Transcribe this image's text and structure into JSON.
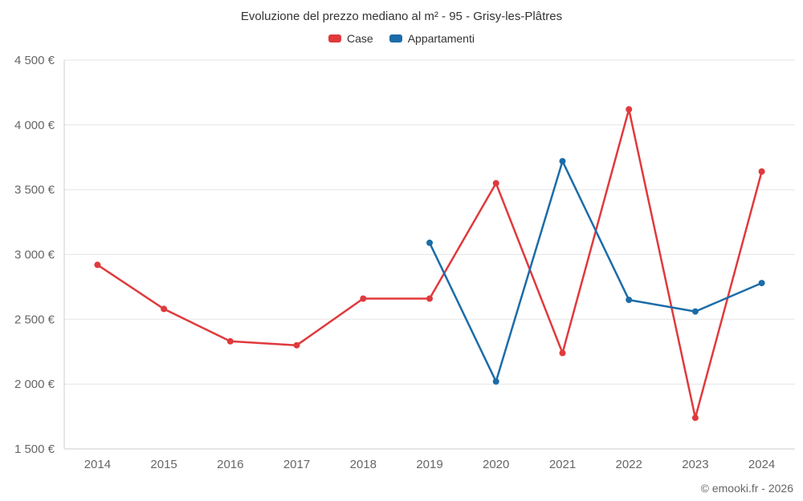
{
  "chart": {
    "title": "Evoluzione del prezzo mediano al m² - 95 - Grisy-les-Plâtres",
    "copyright": "© emooki.fr - 2026"
  },
  "chart_data": {
    "type": "line",
    "title": "Evoluzione del prezzo mediano al m² - 95 - Grisy-les-Plâtres",
    "categories": [
      "2014",
      "2015",
      "2016",
      "2017",
      "2018",
      "2019",
      "2020",
      "2021",
      "2022",
      "2023",
      "2024"
    ],
    "series": [
      {
        "name": "Case",
        "color": "#e0393c",
        "values": [
          2920,
          2580,
          2330,
          2300,
          2660,
          2660,
          3550,
          2240,
          4120,
          1740,
          3640
        ]
      },
      {
        "name": "Appartamenti",
        "color": "#1b6ca8",
        "values": [
          null,
          null,
          null,
          null,
          null,
          3090,
          2020,
          3720,
          2650,
          2560,
          2780
        ]
      }
    ],
    "xlabel": "",
    "ylabel": "",
    "ylim": [
      1500,
      4500
    ],
    "yticks": [
      1500,
      2000,
      2500,
      3000,
      3500,
      4000,
      4500
    ],
    "ytick_labels": [
      "1 500 €",
      "2 000 €",
      "2 500 €",
      "3 000 €",
      "3 500 €",
      "4 000 €",
      "4 500 €"
    ],
    "grid": "horizontal",
    "legend_position": "top",
    "grid_color": "#e6e6e6",
    "axis_line_color": "#cccccc",
    "axis_label_color": "#666666"
  }
}
